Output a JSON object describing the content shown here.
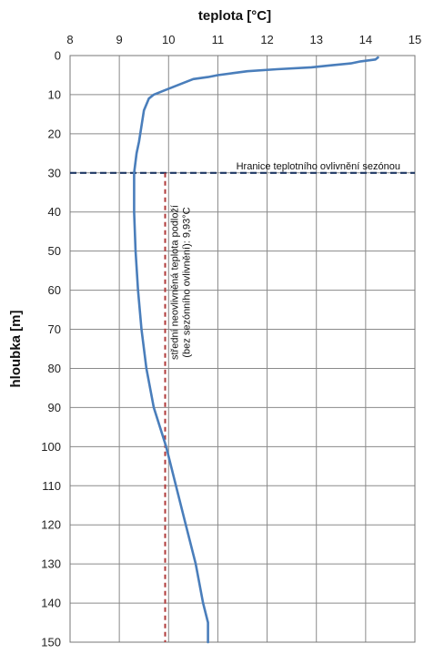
{
  "chart_data": {
    "type": "line",
    "xlabel": "teplota [°C]",
    "ylabel": "hloubka [m]",
    "xlim": [
      8,
      15
    ],
    "ylim": [
      0,
      150
    ],
    "x_ticks": [
      8,
      9,
      10,
      11,
      12,
      13,
      14,
      15
    ],
    "y_ticks": [
      0,
      10,
      20,
      30,
      40,
      50,
      60,
      70,
      80,
      90,
      100,
      110,
      120,
      130,
      140,
      150
    ],
    "x_axis_position": "top",
    "y_axis_inverted": true,
    "grid": true,
    "series": [
      {
        "color": "#4a7ebb",
        "points": [
          [
            14.25,
            0.5
          ],
          [
            14.2,
            1.0
          ],
          [
            13.9,
            1.5
          ],
          [
            13.7,
            2.0
          ],
          [
            13.3,
            2.5
          ],
          [
            12.9,
            3.0
          ],
          [
            12.2,
            3.5
          ],
          [
            11.6,
            4.0
          ],
          [
            11.3,
            4.5
          ],
          [
            11.0,
            5.0
          ],
          [
            10.8,
            5.5
          ],
          [
            10.5,
            6.0
          ],
          [
            10.3,
            7.0
          ],
          [
            10.1,
            8.0
          ],
          [
            9.9,
            9.0
          ],
          [
            9.7,
            10.0
          ],
          [
            9.6,
            11.0
          ],
          [
            9.5,
            14.0
          ],
          [
            9.45,
            18.0
          ],
          [
            9.4,
            22.0
          ],
          [
            9.35,
            25.0
          ],
          [
            9.3,
            30.0
          ],
          [
            9.3,
            35.0
          ],
          [
            9.3,
            40.0
          ],
          [
            9.33,
            50.0
          ],
          [
            9.38,
            60.0
          ],
          [
            9.45,
            70.0
          ],
          [
            9.55,
            80.0
          ],
          [
            9.7,
            90.0
          ],
          [
            9.95,
            100.0
          ],
          [
            10.15,
            110.0
          ],
          [
            10.35,
            120.0
          ],
          [
            10.55,
            130.0
          ],
          [
            10.7,
            140.0
          ],
          [
            10.8,
            145.0
          ],
          [
            10.8,
            150.0
          ]
        ]
      }
    ],
    "reference_lines": [
      {
        "orientation": "horizontal",
        "value": 30,
        "color": "#1f3864",
        "style": "dashed",
        "label": "Hranice teplotního ovlivnění sezónou"
      },
      {
        "orientation": "vertical",
        "value": 9.93,
        "color": "#b03a3a",
        "style": "dashed",
        "label": "střední neovlivněná teplota podloží (bez sezónního ovlivnění): 9,93°C"
      }
    ]
  }
}
